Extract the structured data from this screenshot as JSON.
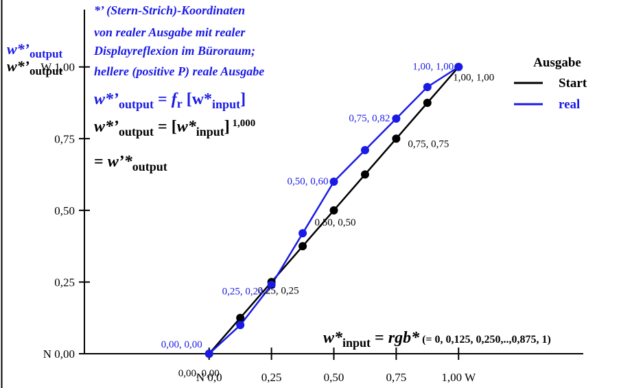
{
  "chart_data": {
    "type": "line",
    "title": "",
    "xlim": [
      -0.5,
      1.5
    ],
    "ylim": [
      0,
      1.2
    ],
    "x_ticks": [
      {
        "value": 0,
        "label": "N  0,0"
      },
      {
        "value": 0.25,
        "label": "0,25"
      },
      {
        "value": 0.5,
        "label": "0,50"
      },
      {
        "value": 0.75,
        "label": "0,75"
      },
      {
        "value": 1.0,
        "label": "1,00  W"
      }
    ],
    "y_ticks": [
      {
        "value": 0,
        "label": "N 0,00"
      },
      {
        "value": 0.25,
        "label": "0,25"
      },
      {
        "value": 0.5,
        "label": "0,50"
      },
      {
        "value": 0.75,
        "label": "0,75"
      },
      {
        "value": 1.0,
        "label": "W 1,00"
      }
    ],
    "series": [
      {
        "name": "Start",
        "color": "#000000",
        "x": [
          0,
          0.125,
          0.25,
          0.375,
          0.5,
          0.625,
          0.75,
          0.875,
          1.0
        ],
        "y": [
          0,
          0.125,
          0.25,
          0.375,
          0.5,
          0.625,
          0.75,
          0.875,
          1.0
        ]
      },
      {
        "name": "real",
        "color": "#1a1ae6",
        "x": [
          0,
          0.125,
          0.25,
          0.375,
          0.5,
          0.625,
          0.75,
          0.875,
          1.0
        ],
        "y": [
          0,
          0.1,
          0.24,
          0.42,
          0.6,
          0.71,
          0.82,
          0.93,
          1.0
        ]
      }
    ],
    "point_labels": [
      {
        "series": 0,
        "index": 0,
        "text": "0,00, 0,00"
      },
      {
        "series": 0,
        "index": 2,
        "text": "0,25, 0,25"
      },
      {
        "series": 0,
        "index": 4,
        "text": "0,50, 0,50"
      },
      {
        "series": 0,
        "index": 6,
        "text": "0,75, 0,75"
      },
      {
        "series": 0,
        "index": 8,
        "text": "1,00, 1,00"
      },
      {
        "series": 1,
        "index": 0,
        "text": "0,00, 0,00"
      },
      {
        "series": 1,
        "index": 2,
        "text": "0,25, 0,24"
      },
      {
        "series": 1,
        "index": 4,
        "text": "0,50, 0,60"
      },
      {
        "series": 1,
        "index": 6,
        "text": "0,75, 0,82"
      },
      {
        "series": 1,
        "index": 8,
        "text": "1,00, 1,00"
      }
    ],
    "legend": {
      "title": "Ausgabe",
      "placement": "top-right",
      "entries": [
        {
          "label": "Start",
          "color": "#000000"
        },
        {
          "label": "real",
          "color": "#1a1ae6"
        }
      ]
    }
  },
  "ylabel": {
    "blue_main": "w*’",
    "blue_sub": "output",
    "black_main": "w*’",
    "black_sub": "output"
  },
  "description_lines": [
    "*’ (Stern-Strich)-Koordinaten",
    "von realer Ausgabe mit realer",
    "Displayreflexion im Büroraum;",
    "hellere (positive P) reale Ausgabe"
  ],
  "formula1": {
    "lhs": "w*’",
    "lhs_sub": "output",
    "eq": " = ",
    "f": "f",
    "f_sub": "r",
    "arg_open": " [w*",
    "arg_sub": "input",
    "arg_close": "]"
  },
  "formula2": {
    "lhs": "w*’",
    "lhs_sub": "output",
    "eq": " = [",
    "arg": "w*",
    "arg_sub": "input",
    "close": "]",
    "exp": " 1,000"
  },
  "formula3": {
    "eq": "= ",
    "main": "w’*",
    "sub": "output"
  },
  "xlabel": {
    "main": "w*",
    "sub": "input",
    "eq": " = ",
    "rgb": "rgb*",
    "detail": " (= 0, 0,125, 0,250,..,0,875, 1)"
  },
  "colors": {
    "blue": "#1a1ae6",
    "black": "#000000"
  }
}
